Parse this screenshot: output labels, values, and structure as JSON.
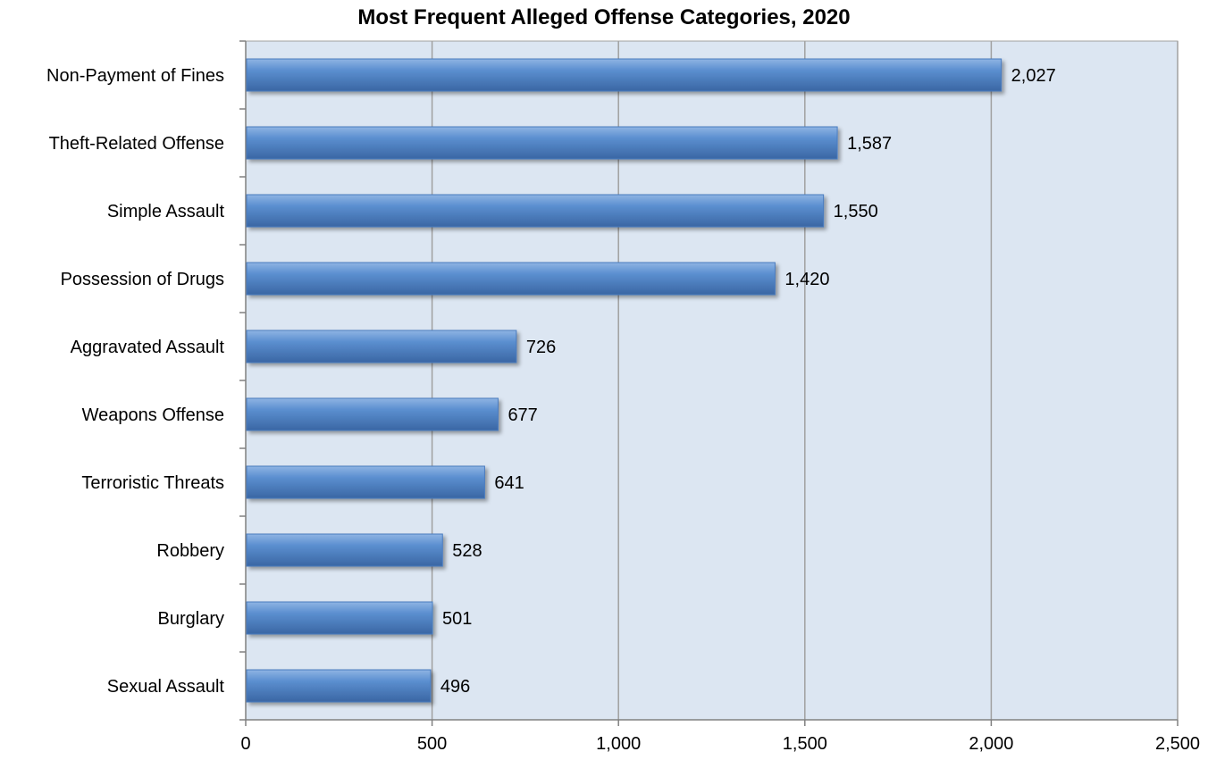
{
  "chart_data": {
    "type": "bar",
    "orientation": "horizontal",
    "title": "Most Frequent Alleged Offense Categories, 2020",
    "xlabel": "",
    "ylabel": "",
    "categories": [
      "Non-Payment of Fines",
      "Theft-Related Offense",
      "Simple Assault",
      "Possession of Drugs",
      "Aggravated Assault",
      "Weapons Offense",
      "Terroristic Threats",
      "Robbery",
      "Burglary",
      "Sexual Assault"
    ],
    "values": [
      2027,
      1587,
      1550,
      1420,
      726,
      677,
      641,
      528,
      501,
      496
    ],
    "data_labels": [
      "2,027",
      "1,587",
      "1,550",
      "1,420",
      "726",
      "677",
      "641",
      "528",
      "501",
      "496"
    ],
    "xlim": [
      0,
      2500
    ],
    "x_ticks": [
      0,
      500,
      1000,
      1500,
      2000,
      2500
    ],
    "x_tick_labels": [
      "0",
      "500",
      "1,000",
      "1,500",
      "2,000",
      "2,500"
    ],
    "grid": true,
    "colors": {
      "bar": "#5b8fd0",
      "bar_highlight": "#8fb4e3",
      "bar_shadow": "#3a66a3",
      "plot_background": "#dce6f2",
      "gridline": "#a0a0a0"
    }
  }
}
